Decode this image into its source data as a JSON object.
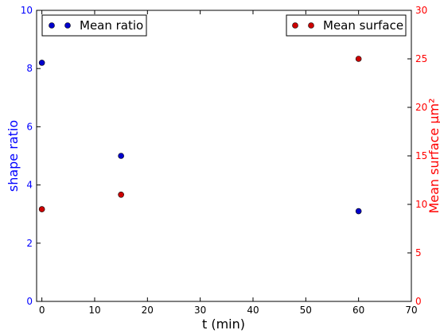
{
  "chart_data": {
    "type": "scatter",
    "xlabel": "t (min)",
    "ylabel_left": "shape ratio",
    "ylabel_right": "Mean surface μm²",
    "xlim": [
      -1,
      70
    ],
    "xticks": [
      0,
      10,
      20,
      30,
      40,
      50,
      60,
      70
    ],
    "ylim_left": [
      0,
      10
    ],
    "yticks_left": [
      0,
      2,
      4,
      6,
      8,
      10
    ],
    "ylim_right": [
      0,
      30
    ],
    "yticks_right": [
      0,
      5,
      10,
      15,
      20,
      25,
      30
    ],
    "grid": false,
    "series": [
      {
        "name": "Mean ratio",
        "axis": "left",
        "color": "#0000cc",
        "legend_position": "top-left",
        "x": [
          0,
          15,
          60
        ],
        "y": [
          8.2,
          5.0,
          3.1
        ]
      },
      {
        "name": "Mean surface",
        "axis": "right",
        "color": "#cc0000",
        "legend_position": "top-right",
        "x": [
          0,
          15,
          60
        ],
        "y": [
          9.5,
          11.0,
          25.0
        ]
      }
    ],
    "left_axis_color": "#0000ff",
    "right_axis_color": "#ff0000"
  }
}
